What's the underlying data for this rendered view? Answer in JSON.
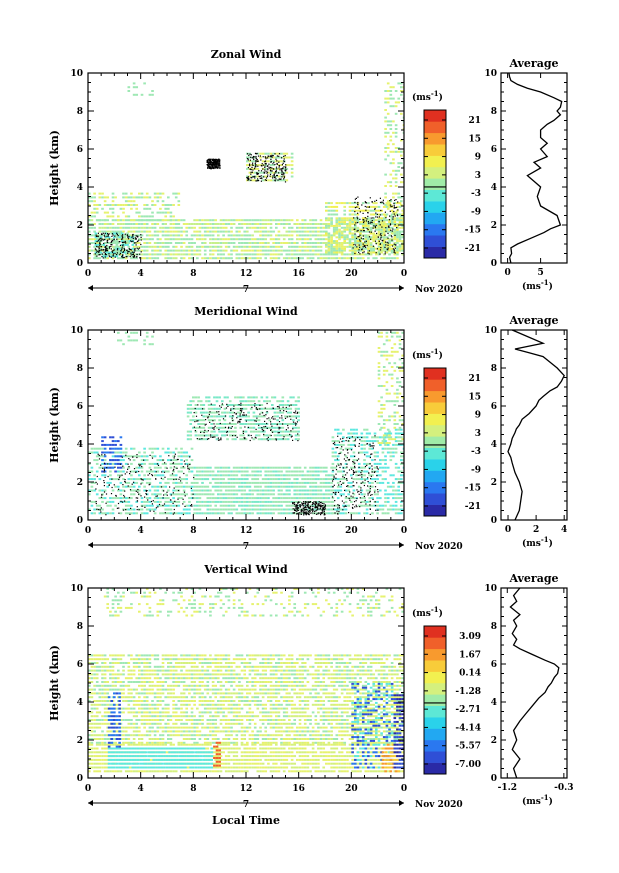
{
  "x_axis_label": "Local Time",
  "date_label": "Nov 2020",
  "day_label": "7",
  "units": "(ms",
  "units_exp": "-1",
  "x_ticks": [
    "0",
    "4",
    "8",
    "12",
    "16",
    "20",
    "0"
  ],
  "y_ticks": [
    "0",
    "2",
    "4",
    "6",
    "8",
    "10"
  ],
  "y_label": "Height (km)",
  "colors": {
    "colorbar": [
      "#2a2aa6",
      "#2f4fd6",
      "#2a78f0",
      "#22a8f2",
      "#2ad2ea",
      "#5de8d6",
      "#a0eca8",
      "#d4f07e",
      "#f2f050",
      "#f8cc3a",
      "#f89a2e",
      "#f0602a",
      "#e03020"
    ],
    "fill_light": "#9ee8b4",
    "fill_yellow": "#e6f26e",
    "fill_cyan": "#5de8e0",
    "fill_blue": "#2f4fd6"
  },
  "chart_data": [
    {
      "type": "heatmap",
      "title": "Zonal Wind",
      "xlabel": "",
      "ylabel": "Height (km)",
      "xlim": [
        0,
        24
      ],
      "ylim": [
        0,
        10
      ],
      "colorbar_ticks": [
        "21",
        "15",
        "9",
        "3",
        "-3",
        "-9",
        "-15",
        "-21"
      ]
    },
    {
      "type": "line",
      "title": "Average",
      "xlabel": "(ms-1)",
      "ylabel": "",
      "xlim": [
        -1,
        9
      ],
      "ylim": [
        0,
        10
      ],
      "x_ticks": [
        "0",
        "5"
      ],
      "y_ticks": [
        "0",
        "2",
        "4",
        "6",
        "8",
        "10"
      ],
      "series": [
        {
          "x": [
            0.5,
            0.3,
            0.6,
            0.5,
            1.5,
            3.5,
            5.5,
            6.5,
            8,
            7.5,
            5,
            4.5,
            5,
            4,
            3,
            5,
            4,
            6,
            5,
            6,
            5,
            5,
            6,
            7,
            8,
            7.5,
            8,
            8.2,
            7,
            5,
            3,
            1.5,
            0.5,
            0.3,
            0.2
          ],
          "y": [
            0,
            0.3,
            0.5,
            0.8,
            1,
            1.3,
            1.6,
            1.8,
            2,
            2.5,
            3,
            3.5,
            4,
            4.3,
            4.6,
            5,
            5.3,
            5.6,
            6,
            6.3,
            6.6,
            7,
            7.3,
            7.5,
            7.8,
            8,
            8.2,
            8.5,
            8.7,
            9,
            9.2,
            9.4,
            9.6,
            9.8,
            10
          ]
        }
      ]
    },
    {
      "type": "heatmap",
      "title": "Meridional Wind",
      "xlabel": "",
      "ylabel": "Height (km)",
      "xlim": [
        0,
        24
      ],
      "ylim": [
        0,
        10
      ],
      "colorbar_ticks": [
        "21",
        "15",
        "9",
        "3",
        "-3",
        "-9",
        "-15",
        "-21"
      ]
    },
    {
      "type": "line",
      "title": "Average",
      "xlabel": "(ms-1)",
      "ylabel": "",
      "xlim": [
        -0.5,
        4.2
      ],
      "ylim": [
        0,
        10
      ],
      "x_ticks": [
        "0",
        "2",
        "4"
      ],
      "y_ticks": [
        "0",
        "2",
        "4",
        "6",
        "8",
        "10"
      ],
      "series": [
        {
          "x": [
            0.5,
            0.8,
            0.9,
            1,
            0.8,
            0.5,
            0.3,
            0.2,
            0,
            0.2,
            0.3,
            0.5,
            0.6,
            0.8,
            1,
            1.5,
            2,
            2.2,
            2.5,
            3,
            3.5,
            3.8,
            4,
            3.5,
            3,
            2.5,
            1.5,
            0.5,
            2.5,
            0.3
          ],
          "y": [
            0,
            0.5,
            1,
            1.5,
            2,
            2.5,
            3,
            3.3,
            3.6,
            4,
            4.3,
            4.6,
            4.8,
            5,
            5.3,
            5.6,
            6,
            6.3,
            6.5,
            6.8,
            7,
            7.3,
            7.6,
            8,
            8.3,
            8.6,
            8.8,
            9,
            9.3,
            10
          ]
        }
      ]
    },
    {
      "type": "heatmap",
      "title": "Vertical Wind",
      "xlabel": "Local Time",
      "ylabel": "Height (km)",
      "xlim": [
        0,
        24
      ],
      "ylim": [
        0,
        10
      ],
      "colorbar_ticks": [
        "3.09",
        "1.67",
        "0.14",
        "-1.28",
        "-2.71",
        "-4.14",
        "-5.57",
        "-7.00"
      ]
    },
    {
      "type": "line",
      "title": "Average",
      "xlabel": "(ms-1)",
      "ylabel": "",
      "xlim": [
        -1.3,
        -0.25
      ],
      "ylim": [
        0,
        10
      ],
      "x_ticks": [
        "-1.2",
        "-0.3"
      ],
      "y_ticks": [
        "0",
        "2",
        "4",
        "6",
        "8",
        "10"
      ],
      "series": [
        {
          "x": [
            -1.05,
            -1.1,
            -1.0,
            -1.12,
            -1.05,
            -1.1,
            -1.0,
            -0.9,
            -0.8,
            -0.7,
            -0.6,
            -0.55,
            -0.5,
            -0.45,
            -0.4,
            -0.38,
            -0.45,
            -0.6,
            -0.8,
            -1.0,
            -1.1,
            -1.05,
            -1.12,
            -1.05,
            -1.1,
            -1.0,
            -1.15,
            -1.05,
            -1.1,
            -1.0
          ],
          "y": [
            0,
            0.5,
            1,
            1.5,
            2,
            2.5,
            3,
            3.4,
            3.8,
            4.2,
            4.5,
            4.8,
            5.0,
            5.3,
            5.5,
            5.8,
            6.0,
            6.2,
            6.5,
            6.8,
            7.0,
            7.3,
            7.6,
            8,
            8.3,
            8.6,
            9,
            9.3,
            9.6,
            10
          ]
        }
      ]
    }
  ]
}
